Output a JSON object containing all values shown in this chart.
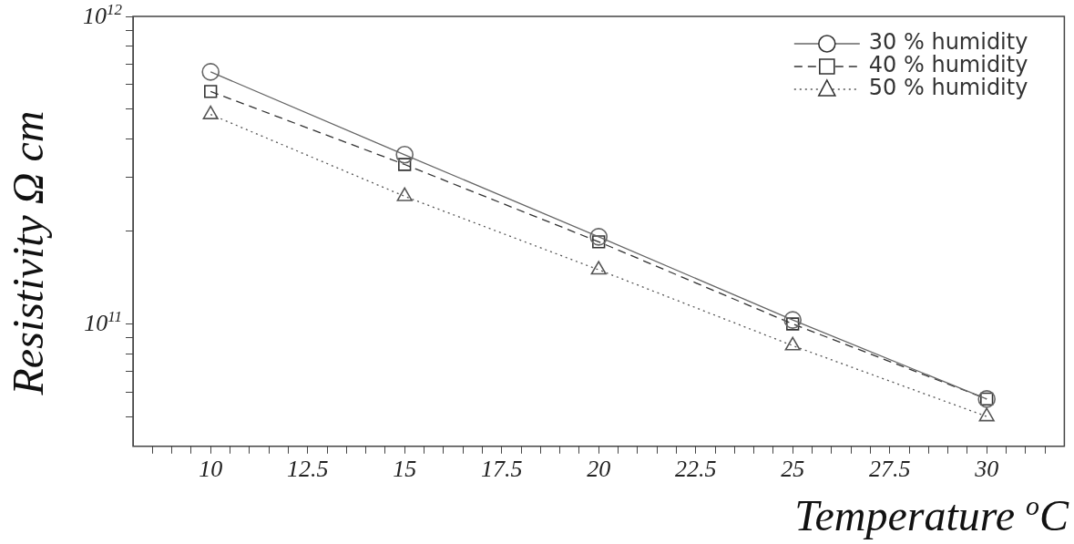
{
  "chart_data": {
    "type": "line",
    "xlabel": "Temperature $^{o}$C",
    "ylabel": "Resistivity Ω cm",
    "x": [
      10,
      15,
      20,
      25,
      30
    ],
    "series": [
      {
        "name": "30 % humidity",
        "color": "#666666",
        "marker": "circle",
        "line_style": "solid",
        "values": [
          660000000000.0,
          355000000000.0,
          192000000000.0,
          103000000000.0,
          57000000000.0
        ]
      },
      {
        "name": "40 % humidity",
        "color": "#333333",
        "marker": "square",
        "line_style": "dashed",
        "values": [
          570000000000.0,
          330000000000.0,
          185000000000.0,
          100000000000.0,
          57000000000.0
        ]
      },
      {
        "name": "50 % humidity",
        "color": "#555555",
        "marker": "triangle",
        "line_style": "dotted",
        "values": [
          480000000000.0,
          260000000000.0,
          150000000000.0,
          85000000000.0,
          50000000000.0
        ]
      }
    ],
    "log": "y",
    "xlim": [
      8,
      32
    ],
    "xticks": [
      {
        "value": 8.5,
        "label": null
      },
      {
        "value": 9,
        "label": null
      },
      {
        "value": 9.5,
        "label": null
      },
      10,
      {
        "value": 10.5,
        "label": null
      },
      {
        "value": 11,
        "label": null
      },
      {
        "value": 11.5,
        "label": null
      },
      {
        "value": 12,
        "label": null
      },
      12.5,
      {
        "value": 13,
        "label": null
      },
      {
        "value": 13.5,
        "label": null
      },
      {
        "value": 14,
        "label": null
      },
      {
        "value": 14.5,
        "label": null
      },
      15,
      {
        "value": 15.5,
        "label": null
      },
      {
        "value": 16,
        "label": null
      },
      {
        "value": 16.5,
        "label": null
      },
      {
        "value": 17,
        "label": null
      },
      17.5,
      {
        "value": 18,
        "label": null
      },
      {
        "value": 18.5,
        "label": null
      },
      {
        "value": 19,
        "label": null
      },
      {
        "value": 19.5,
        "label": null
      },
      20,
      {
        "value": 20.5,
        "label": null
      },
      {
        "value": 21,
        "label": null
      },
      {
        "value": 21.5,
        "label": null
      },
      {
        "value": 22,
        "label": null
      },
      22.5,
      {
        "value": 23,
        "label": null
      },
      {
        "value": 23.5,
        "label": null
      },
      {
        "value": 24,
        "label": null
      },
      {
        "value": 24.5,
        "label": null
      },
      25,
      {
        "value": 25.5,
        "label": null
      },
      {
        "value": 26,
        "label": null
      },
      {
        "value": 26.5,
        "label": null
      },
      {
        "value": 27,
        "label": null
      },
      27.5,
      {
        "value": 28,
        "label": null
      },
      {
        "value": 28.5,
        "label": null
      },
      {
        "value": 29,
        "label": null
      },
      {
        "value": 29.5,
        "label": null
      },
      30,
      {
        "value": 30.5,
        "label": null
      },
      {
        "value": 31,
        "label": null
      },
      {
        "value": 31.5,
        "label": null
      }
    ],
    "ylim": [
      40000000000.0,
      1000000000000.0
    ],
    "yticks": [
      {
        "value": 50000000000.0,
        "label": null
      },
      {
        "value": 60000000000.0,
        "label": null
      },
      {
        "value": 70000000000.0,
        "label": null
      },
      {
        "value": 80000000000.0,
        "label": null
      },
      {
        "value": 90000000000.0,
        "label": null
      },
      {
        "value": 100000000000.0,
        "label": "10$^{11}$"
      },
      {
        "value": 200000000000.0,
        "label": null
      },
      {
        "value": 300000000000.0,
        "label": null
      },
      {
        "value": 400000000000.0,
        "label": null
      },
      {
        "value": 500000000000.0,
        "label": null
      },
      {
        "value": 600000000000.0,
        "label": null
      },
      {
        "value": 700000000000.0,
        "label": null
      },
      {
        "value": 800000000000.0,
        "label": null
      },
      {
        "value": 900000000000.0,
        "label": null
      },
      {
        "value": 1000000000000.0,
        "label": "10$^{12}$"
      }
    ],
    "grid": false,
    "legend": "top right"
  }
}
